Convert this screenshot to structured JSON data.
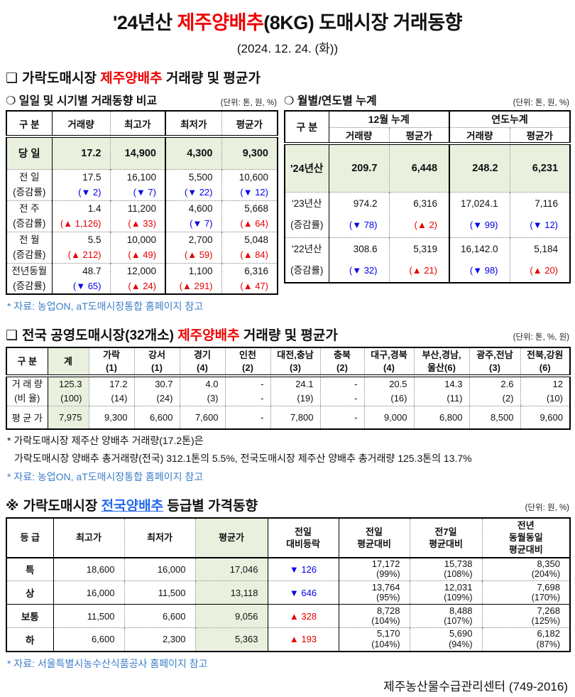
{
  "page": {
    "title": {
      "pre": "'24년산 ",
      "red": "제주양배추",
      "post": "(8KG) 도매시장 거래동향"
    },
    "subtitle": "(2024. 12. 24. (화))",
    "footer": "제주농산물수급관리센터 (749-2016)"
  },
  "colors": {
    "title_red": "#ee0000",
    "chg_red": "#e60000",
    "chg_blue": "#0000e6",
    "link_blue": "#2468ef",
    "src_blue": "#3d7ec9",
    "green": "#e9f0de"
  },
  "section1": {
    "bullet": "❑",
    "title": {
      "pre": "가락도매시장 ",
      "red": "제주양배추",
      "post": " 거래량 및 평균가"
    },
    "daily": {
      "subtitle": "❍ 일일 및 시기별 거래동향 비교",
      "unit": "(단위: 톤, 원, %)",
      "headers": [
        "구  분",
        "거래량",
        "최고가",
        "최저가",
        "평균가"
      ],
      "today": {
        "label": "당  일",
        "values": [
          "17.2",
          "14,900",
          "4,300",
          "9,300"
        ]
      },
      "rows": [
        {
          "label": "전  일",
          "sub": "(증감률)",
          "values": [
            "17.5",
            "16,100",
            "5,500",
            "10,600"
          ],
          "changes": [
            "(▼ 2)",
            "(▼ 7)",
            "(▼ 22)",
            "(▼ 12)"
          ]
        },
        {
          "label": "전  주",
          "sub": "(증감률)",
          "values": [
            "1.4",
            "11,200",
            "4,600",
            "5,668"
          ],
          "changes": [
            "(▲ 1,126)",
            "(▲ 33)",
            "(▼ 7)",
            "(▲ 64)"
          ]
        },
        {
          "label": "전  월",
          "sub": "(증감률)",
          "values": [
            "5.5",
            "10,000",
            "2,700",
            "5,048"
          ],
          "changes": [
            "(▲ 212)",
            "(▲ 49)",
            "(▲ 59)",
            "(▲ 84)"
          ]
        },
        {
          "label": "전년동월",
          "sub": "(증감률)",
          "values": [
            "48.7",
            "12,000",
            "1,100",
            "6,316"
          ],
          "changes": [
            "(▼ 65)",
            "(▲ 24)",
            "(▲ 291)",
            "(▲ 47)"
          ]
        }
      ]
    },
    "cumulative": {
      "subtitle": "❍ 월별/연도별 누계",
      "unit": "(단위: 톤, 원, %)",
      "col_label": "구  분",
      "groups": [
        "12월 누계",
        "연도누계"
      ],
      "sub_headers": [
        "거래량",
        "평균가",
        "거래량",
        "평균가"
      ],
      "today": {
        "label": "'24년산",
        "values": [
          "209.7",
          "6,448",
          "248.2",
          "6,231"
        ]
      },
      "rows": [
        {
          "label": "'23년산",
          "sub": "(증감률)",
          "values": [
            "974.2",
            "6,316",
            "17,024.1",
            "7,116"
          ],
          "changes": [
            "(▼ 78)",
            "(▲ 2)",
            "(▼ 99)",
            "(▼ 12)"
          ]
        },
        {
          "label": "'22년산",
          "sub": "(증감률)",
          "values": [
            "308.6",
            "5,319",
            "16,142.0",
            "5,184"
          ],
          "changes": [
            "(▼ 32)",
            "(▲ 21)",
            "(▼ 98)",
            "(▲ 20)"
          ]
        }
      ]
    },
    "source": "* 자료: 농업ON, aT도매시장통합 홈페이지 참고"
  },
  "section2": {
    "bullet": "❑",
    "title": {
      "pre": "전국 공영도매시장(32개소) ",
      "red": "제주양배추",
      "post": " 거래량 및 평균가"
    },
    "unit": "(단위: 톤, %, 원)",
    "row_header": "구  분",
    "total_header": "계",
    "columns": [
      {
        "name": "가락",
        "count": "(1)"
      },
      {
        "name": "강서",
        "count": "(1)"
      },
      {
        "name": "경기",
        "count": "(4)"
      },
      {
        "name": "인천",
        "count": "(2)"
      },
      {
        "name": "대전,충남",
        "count": "(3)"
      },
      {
        "name": "충북",
        "count": "(2)"
      },
      {
        "name": "대구,경북",
        "count": "(4)"
      },
      {
        "name": "부산,경남,",
        "count": "울산(6)"
      },
      {
        "name": "광주,전남",
        "count": "(3)"
      },
      {
        "name": "전북,강원",
        "count": "(6)"
      }
    ],
    "volume_row": {
      "label": "거 래 량",
      "sub": "(비 율)",
      "total": "125.3",
      "total_ratio": "(100)",
      "values": [
        "17.2",
        "30.7",
        "4.0",
        "-",
        "24.1",
        "-",
        "20.5",
        "14.3",
        "2.6",
        "12"
      ],
      "ratios": [
        "(14)",
        "(24)",
        "(3)",
        "-",
        "(19)",
        "-",
        "(16)",
        "(11)",
        "(2)",
        "(10)"
      ]
    },
    "price_row": {
      "label": "평 균 가",
      "total": "7,975",
      "values": [
        "9,300",
        "6,600",
        "7,600",
        "-",
        "7,800",
        "-",
        "9,000",
        "6,800",
        "8,500",
        "9,600"
      ]
    },
    "notes": [
      "* 가락도매시장 제주산 양배추 거래량(17.2톤)은",
      "가락도매시장 양배추 총거래량(전국) 312.1톤의 5.5%, 전국도매시장 제주산 양배추 총거래량 125.3톤의 13.7%"
    ],
    "source": "* 자료: 농업ON, aT도매시장통합 홈페이지 참고"
  },
  "section3": {
    "bullet": "※",
    "title": {
      "pre": "가락도매시장 ",
      "link": "전국양배추",
      "post": " 등급별 가격동향"
    },
    "unit": "(단위: 원, %)",
    "headers": [
      [
        "등  급"
      ],
      [
        "최고가"
      ],
      [
        "최저가"
      ],
      [
        "평균가"
      ],
      [
        "전일",
        "대비등락"
      ],
      [
        "전일",
        "평균대비"
      ],
      [
        "전7일",
        "평균대비"
      ],
      [
        "전년",
        "동월동일",
        "평균대비"
      ]
    ],
    "rows": [
      {
        "grade": "특",
        "max": "18,600",
        "min": "16,000",
        "avg": "17,046",
        "delta": "▼ 126",
        "d1": [
          "17,172",
          "(99%)"
        ],
        "d7": [
          "15,738",
          "(108%)"
        ],
        "dy": [
          "8,350",
          "(204%)"
        ]
      },
      {
        "grade": "상",
        "max": "16,000",
        "min": "11,500",
        "avg": "13,118",
        "delta": "▼ 646",
        "d1": [
          "13,764",
          "(95%)"
        ],
        "d7": [
          "12,031",
          "(109%)"
        ],
        "dy": [
          "7,698",
          "(170%)"
        ]
      },
      {
        "grade": "보통",
        "max": "11,500",
        "min": "6,600",
        "avg": "9,056",
        "delta": "▲ 328",
        "d1": [
          "8,728",
          "(104%)"
        ],
        "d7": [
          "8,488",
          "(107%)"
        ],
        "dy": [
          "7,268",
          "(125%)"
        ]
      },
      {
        "grade": "하",
        "max": "6,600",
        "min": "2,300",
        "avg": "5,363",
        "delta": "▲ 193",
        "d1": [
          "5,170",
          "(104%)"
        ],
        "d7": [
          "5,690",
          "(94%)"
        ],
        "dy": [
          "6,182",
          "(87%)"
        ]
      }
    ],
    "source": "* 자료: 서울특별시농수산식품공사 홈페이지 참고"
  }
}
